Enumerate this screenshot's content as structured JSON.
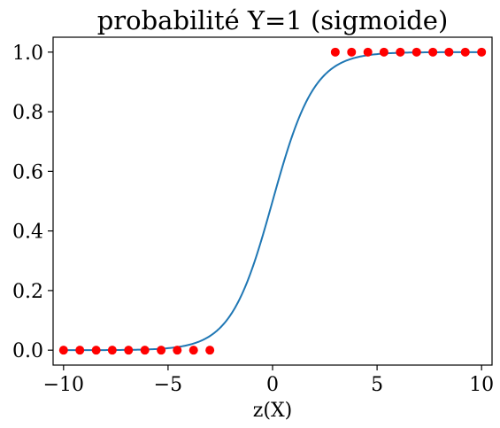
{
  "chart_data": {
    "type": "scatter",
    "title": "probabilité Y=1 (sigmoide)",
    "xlabel": "z(X)",
    "ylabel": "",
    "xlim": [
      -10.5,
      10.5
    ],
    "ylim": [
      -0.05,
      1.05
    ],
    "xticks": [
      -10,
      -5,
      0,
      5,
      10
    ],
    "xtick_labels": [
      "−10",
      "−5",
      "0",
      "5",
      "10"
    ],
    "yticks": [
      0.0,
      0.2,
      0.4,
      0.6,
      0.8,
      1.0
    ],
    "ytick_labels": [
      "0.0",
      "0.2",
      "0.4",
      "0.6",
      "0.8",
      "1.0"
    ],
    "grid": false,
    "series": [
      {
        "kind": "line",
        "function": "sigmoid",
        "color": "#1f77b4",
        "x_range": [
          -10,
          10
        ]
      },
      {
        "kind": "scatter",
        "color": "#ff0000",
        "x": [
          -10,
          -9.22,
          -8.44,
          -7.67,
          -6.89,
          -6.11,
          -5.33,
          -4.56,
          -3.78,
          -3,
          3,
          3.78,
          4.56,
          5.33,
          6.11,
          6.89,
          7.67,
          8.44,
          9.22,
          10
        ],
        "y": [
          0,
          0,
          0,
          0,
          0,
          0,
          0,
          0,
          0,
          0,
          1,
          1,
          1,
          1,
          1,
          1,
          1,
          1,
          1,
          1
        ]
      }
    ]
  }
}
